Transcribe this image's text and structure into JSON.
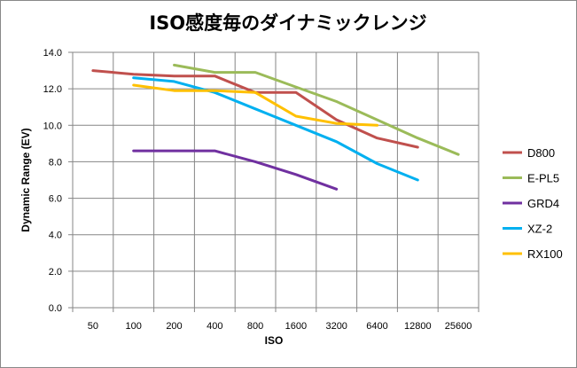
{
  "chart_data": {
    "type": "line",
    "title": "ISO感度毎のダイナミックレンジ",
    "xlabel": "ISO",
    "ylabel": "Dynamic Range (EV)",
    "categories": [
      "50",
      "100",
      "200",
      "400",
      "800",
      "1600",
      "3200",
      "6400",
      "12800",
      "25600"
    ],
    "y_ticks": [
      "0.0",
      "2.0",
      "4.0",
      "6.0",
      "8.0",
      "10.0",
      "12.0",
      "14.0"
    ],
    "ylim": [
      0,
      14
    ],
    "grid": "vertical and horizontal",
    "legend_position": "right",
    "series": [
      {
        "name": "D800",
        "color": "#C0504D",
        "values": [
          13.0,
          12.8,
          12.7,
          12.7,
          11.8,
          11.8,
          10.3,
          9.3,
          8.8,
          null
        ]
      },
      {
        "name": "E-PL5",
        "color": "#9BBB59",
        "values": [
          null,
          null,
          13.3,
          12.9,
          12.9,
          12.1,
          11.3,
          10.3,
          9.3,
          8.4
        ]
      },
      {
        "name": "GRD4",
        "color": "#7030A0",
        "values": [
          null,
          8.6,
          8.6,
          8.6,
          8.0,
          7.3,
          6.5,
          null,
          null,
          null
        ]
      },
      {
        "name": "XZ-2",
        "color": "#00B0F0",
        "values": [
          null,
          12.6,
          12.4,
          11.8,
          10.9,
          10.0,
          9.1,
          7.9,
          7.0,
          null
        ]
      },
      {
        "name": "RX100",
        "color": "#FFC000",
        "values": [
          null,
          12.2,
          11.9,
          11.9,
          11.8,
          10.5,
          10.1,
          10.0,
          null,
          null
        ]
      }
    ]
  }
}
